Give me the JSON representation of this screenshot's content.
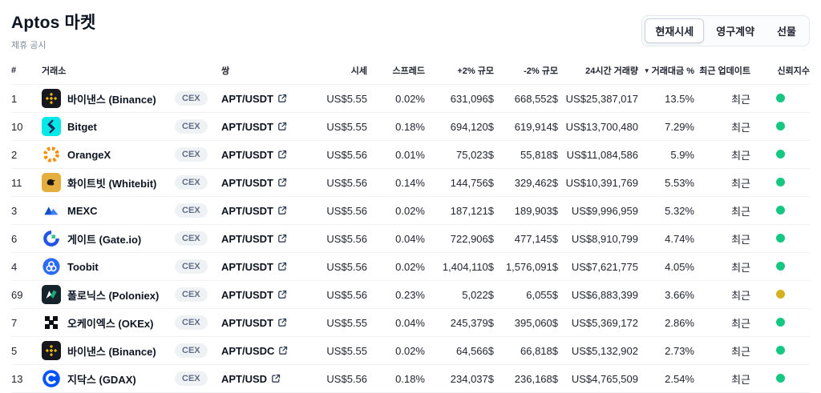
{
  "page": {
    "title": "Aptos 마켓",
    "subtitle": "제휴 공시"
  },
  "tabs": [
    {
      "label": "현재시세",
      "active": true
    },
    {
      "label": "영구계약",
      "active": false
    },
    {
      "label": "선물",
      "active": false
    }
  ],
  "table": {
    "sort_indicator": "▼",
    "columns": {
      "rank": "#",
      "exchange": "거래소",
      "pair": "쌍",
      "price": "시세",
      "spread": "스프레드",
      "plus2": "+2% 규모",
      "minus2": "-2% 규모",
      "volume24h": "24시간 거래량",
      "volume_pct": "거래대금 %",
      "updated": "최근 업데이트",
      "confidence": "신뢰지수"
    },
    "rows": [
      {
        "rank": "1",
        "icon": "binance",
        "name": "바이낸스 (Binance)",
        "badge": "CEX",
        "pair": "APT/USDT",
        "price": "US$5.55",
        "spread": "0.02%",
        "plus2": "631,096$",
        "minus2": "668,552$",
        "volume24h": "US$25,387,017",
        "volume_pct": "13.5%",
        "updated": "최근",
        "confidence": "green"
      },
      {
        "rank": "10",
        "icon": "bitget",
        "name": "Bitget",
        "badge": "CEX",
        "pair": "APT/USDT",
        "price": "US$5.55",
        "spread": "0.18%",
        "plus2": "694,120$",
        "minus2": "619,914$",
        "volume24h": "US$13,700,480",
        "volume_pct": "7.29%",
        "updated": "최근",
        "confidence": "green"
      },
      {
        "rank": "2",
        "icon": "orangex",
        "name": "OrangeX",
        "badge": "CEX",
        "pair": "APT/USDT",
        "price": "US$5.56",
        "spread": "0.01%",
        "plus2": "75,023$",
        "minus2": "55,818$",
        "volume24h": "US$11,084,586",
        "volume_pct": "5.9%",
        "updated": "최근",
        "confidence": "green"
      },
      {
        "rank": "11",
        "icon": "whitebit",
        "name": "화이트빗 (Whitebit)",
        "badge": "CEX",
        "pair": "APT/USDT",
        "price": "US$5.56",
        "spread": "0.14%",
        "plus2": "144,756$",
        "minus2": "329,462$",
        "volume24h": "US$10,391,769",
        "volume_pct": "5.53%",
        "updated": "최근",
        "confidence": "green"
      },
      {
        "rank": "3",
        "icon": "mexc",
        "name": "MEXC",
        "badge": "CEX",
        "pair": "APT/USDT",
        "price": "US$5.56",
        "spread": "0.02%",
        "plus2": "187,121$",
        "minus2": "189,903$",
        "volume24h": "US$9,996,959",
        "volume_pct": "5.32%",
        "updated": "최근",
        "confidence": "green"
      },
      {
        "rank": "6",
        "icon": "gate",
        "name": "게이트 (Gate.io)",
        "badge": "CEX",
        "pair": "APT/USDT",
        "price": "US$5.56",
        "spread": "0.04%",
        "plus2": "722,906$",
        "minus2": "477,145$",
        "volume24h": "US$8,910,799",
        "volume_pct": "4.74%",
        "updated": "최근",
        "confidence": "green"
      },
      {
        "rank": "4",
        "icon": "toobit",
        "name": "Toobit",
        "badge": "CEX",
        "pair": "APT/USDT",
        "price": "US$5.56",
        "spread": "0.02%",
        "plus2": "1,404,110$",
        "minus2": "1,576,091$",
        "volume24h": "US$7,621,775",
        "volume_pct": "4.05%",
        "updated": "최근",
        "confidence": "green"
      },
      {
        "rank": "69",
        "icon": "poloniex",
        "name": "폴로닉스 (Poloniex)",
        "badge": "CEX",
        "pair": "APT/USDT",
        "price": "US$5.56",
        "spread": "0.23%",
        "plus2": "5,022$",
        "minus2": "6,055$",
        "volume24h": "US$6,883,399",
        "volume_pct": "3.66%",
        "updated": "최근",
        "confidence": "yellow"
      },
      {
        "rank": "7",
        "icon": "okx",
        "name": "오케이엑스 (OKEx)",
        "badge": "CEX",
        "pair": "APT/USDT",
        "price": "US$5.55",
        "spread": "0.04%",
        "plus2": "245,379$",
        "minus2": "395,060$",
        "volume24h": "US$5,369,172",
        "volume_pct": "2.86%",
        "updated": "최근",
        "confidence": "green"
      },
      {
        "rank": "5",
        "icon": "binance",
        "name": "바이낸스 (Binance)",
        "badge": "CEX",
        "pair": "APT/USDC",
        "price": "US$5.55",
        "spread": "0.02%",
        "plus2": "64,566$",
        "minus2": "66,818$",
        "volume24h": "US$5,132,902",
        "volume_pct": "2.73%",
        "updated": "최근",
        "confidence": "green"
      },
      {
        "rank": "13",
        "icon": "gdax",
        "name": "지닥스 (GDAX)",
        "badge": "CEX",
        "pair": "APT/USD",
        "price": "US$5.56",
        "spread": "0.18%",
        "plus2": "234,037$",
        "minus2": "236,168$",
        "volume24h": "US$4,765,509",
        "volume_pct": "2.54%",
        "updated": "최근",
        "confidence": "green"
      }
    ]
  },
  "icons": {
    "binance": {
      "bg": "#16181d",
      "fg": "#f0b90b"
    },
    "bitget": {
      "bg": "#00e8e8",
      "fg": "#16285a"
    },
    "orangex": {
      "bg": "#ffffff",
      "fg": "#fb8c00"
    },
    "whitebit": {
      "bg": "#e3ae3d",
      "fg": "#161616"
    },
    "mexc": {
      "bg": "#ffffff",
      "fg": "#2e73f5",
      "fg2": "#1450c8"
    },
    "gate": {
      "bg": "#ffffff",
      "fg": "#2354e6",
      "fg2": "#37c489"
    },
    "toobit": {
      "bg": "#2d6bf6",
      "fg": "#ffffff"
    },
    "poloniex": {
      "bg": "#15232b",
      "fg": "#19a97a"
    },
    "okx": {
      "bg": "#ffffff",
      "fg": "#0b0e11"
    },
    "gdax": {
      "bg": "#0052ff",
      "fg": "#ffffff"
    }
  },
  "colors": {
    "green": "#16c784",
    "yellow": "#d6b01e"
  }
}
